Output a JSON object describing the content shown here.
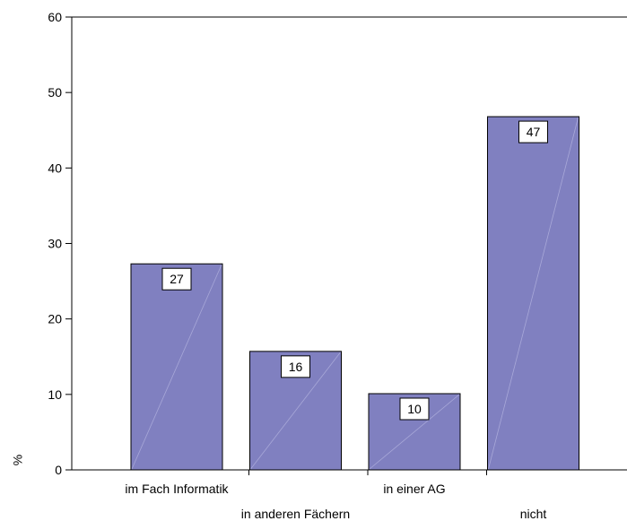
{
  "chart_data": {
    "type": "bar",
    "categories": [
      "im Fach Informatik",
      "in anderen Fächern",
      "in einer AG",
      "nicht"
    ],
    "values": [
      27.3,
      15.7,
      10.1,
      46.8
    ],
    "data_labels": [
      "27",
      "16",
      "10",
      "47"
    ],
    "title": "",
    "xlabel": "",
    "ylabel": "%",
    "ylim": [
      0,
      60
    ],
    "yticks": [
      0,
      10,
      20,
      30,
      40,
      50,
      60
    ],
    "grid": false,
    "legend": "none",
    "colors": {
      "bar_fill": "#8080c0",
      "bar_stroke": "#000000",
      "bar_diagonal": "#a8a8d8",
      "label_box_fill": "#ffffff",
      "label_box_stroke": "#000000",
      "axis": "#000000"
    }
  }
}
